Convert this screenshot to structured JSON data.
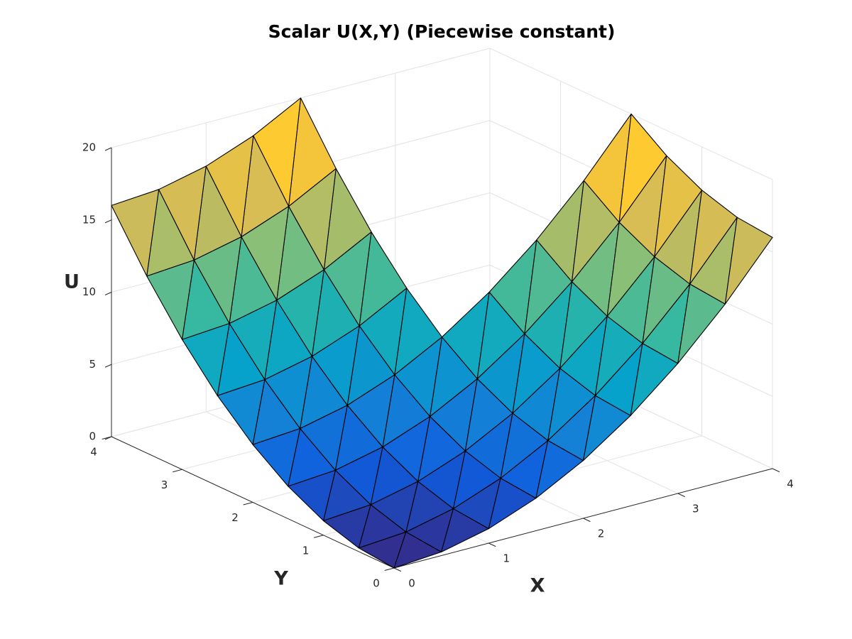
{
  "chart_data": {
    "type": "trisurf",
    "title": "Scalar U(X,Y) (Piecewise constant)",
    "xlabel": "X",
    "ylabel": "Y",
    "zlabel": "U",
    "x": [
      0,
      0.5,
      1,
      1.5,
      2,
      2.5,
      3,
      3.5,
      4
    ],
    "y": [
      0,
      0.5,
      1,
      1.5,
      2,
      2.5,
      3,
      3.5,
      4
    ],
    "z": [
      [
        0,
        0.25,
        1,
        2.25,
        4,
        6.25,
        9,
        12.25,
        16
      ],
      [
        0.25,
        0.5,
        1.25,
        2.5,
        4.25,
        6.5,
        9.25,
        12.5,
        16.25
      ],
      [
        1,
        1.25,
        2,
        3.25,
        5,
        7.25,
        10,
        13.25,
        17
      ],
      [
        2.25,
        2.5,
        3.25,
        4.5,
        6.25,
        8.5,
        11.25,
        14.5,
        18.25
      ],
      [
        4,
        4.25,
        5,
        6.25,
        8,
        10.25,
        13,
        16.25,
        20
      ],
      [
        6.25,
        6.5,
        7.25,
        8.5,
        10.25,
        null,
        null,
        null,
        null
      ],
      [
        9,
        9.25,
        10,
        11.25,
        13,
        null,
        null,
        null,
        null
      ],
      [
        12.25,
        12.5,
        13.25,
        14.5,
        16.25,
        null,
        null,
        null,
        null
      ],
      [
        16,
        16.25,
        17,
        18.25,
        20,
        null,
        null,
        null,
        null
      ]
    ],
    "xlim": [
      0,
      4
    ],
    "ylim": [
      0,
      4
    ],
    "zlim": [
      0,
      20
    ],
    "xticks": [
      0,
      1,
      2,
      3,
      4
    ],
    "yticks": [
      0,
      1,
      2,
      3,
      4
    ],
    "zticks": [
      0,
      5,
      10,
      15,
      20
    ],
    "grid": true,
    "edge_color": "#000000",
    "colormap": [
      "#352a87",
      "#0f5cdd",
      "#1481d6",
      "#06a4ca",
      "#2eb7a4",
      "#87bf77",
      "#d1bb59",
      "#fec832",
      "#f9fb0e"
    ]
  }
}
